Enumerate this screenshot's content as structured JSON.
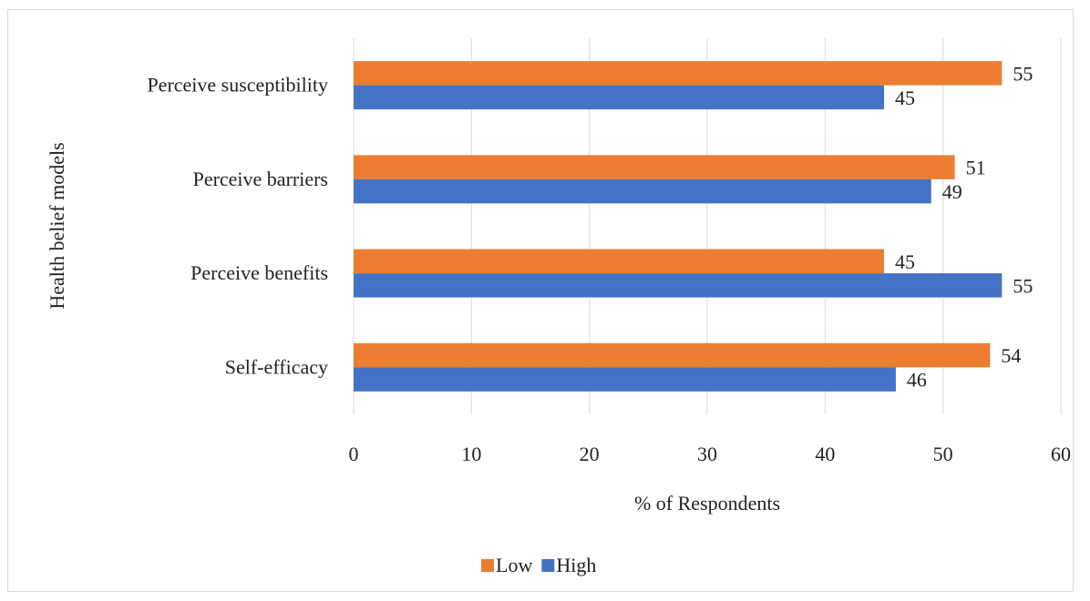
{
  "chart_data": {
    "type": "bar",
    "orientation": "horizontal",
    "categories": [
      "Perceive susceptibility",
      "Perceive barriers",
      "Perceive benefits",
      "Self-efficacy"
    ],
    "series": [
      {
        "name": "Low",
        "color": "#ED7D31",
        "values": [
          55,
          51,
          45,
          54
        ]
      },
      {
        "name": "High",
        "color": "#4472C4",
        "values": [
          45,
          49,
          55,
          46
        ]
      }
    ],
    "xlabel": "% of Respondents",
    "ylabel": "Health belief models",
    "xlim": [
      0,
      60
    ],
    "xticks": [
      0,
      10,
      20,
      30,
      40,
      50,
      60
    ],
    "grid": true,
    "legend_position": "bottom"
  }
}
